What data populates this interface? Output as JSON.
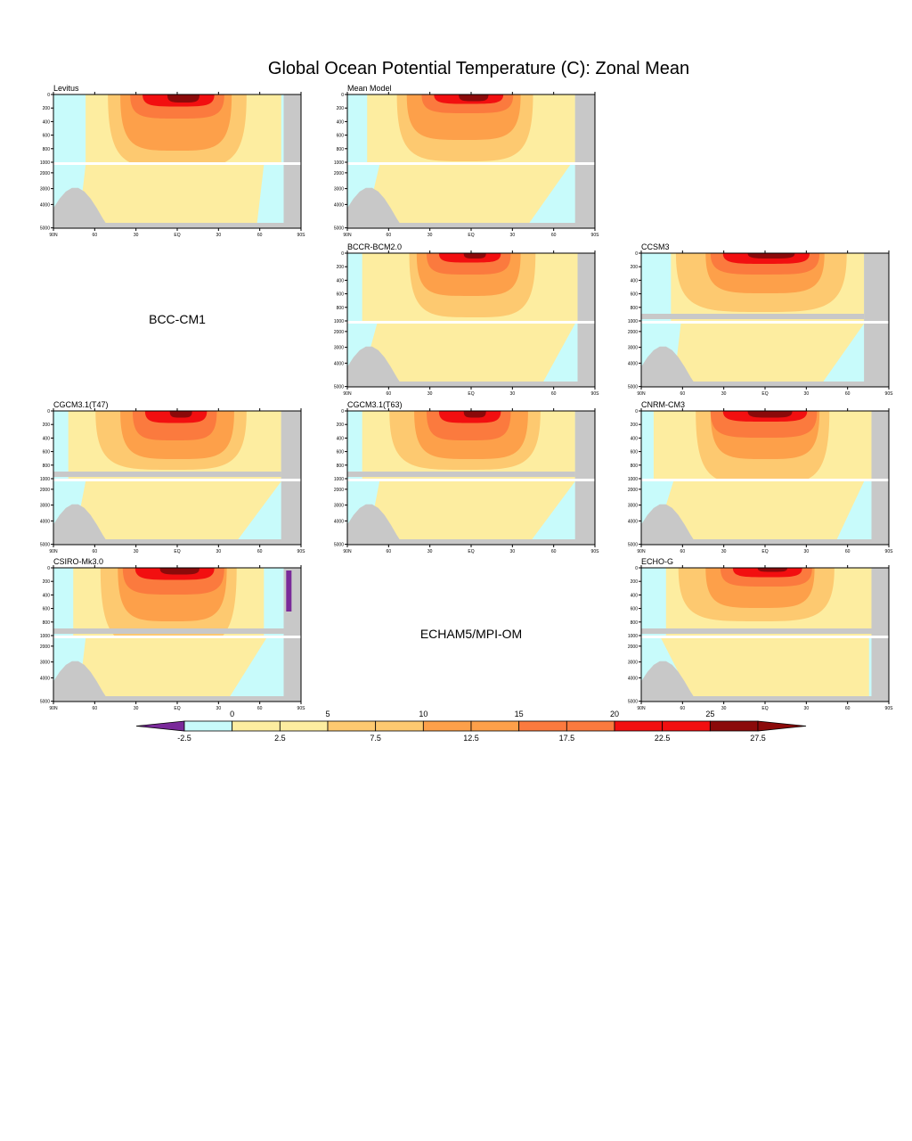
{
  "title": "Global Ocean Potential Temperature (C): Zonal Mean",
  "colors": {
    "land": "#c8c8c8",
    "below_-2.5": "#7a2a9a",
    "-2.5_0": "#c8fbfb",
    "0_5": "#fdeda0",
    "5_10": "#fdc970",
    "10_15": "#fda04a",
    "15_20": "#fb7a3e",
    "20_25": "#f20f10",
    "above_25": "#8b0a0a"
  },
  "chart_data": {
    "type": "contour",
    "x_ticks": [
      "90N",
      "60",
      "30",
      "EQ",
      "30",
      "60",
      "90S"
    ],
    "y_ticks_upper": [
      "0",
      "200",
      "400",
      "600",
      "800",
      "1000"
    ],
    "y_ticks_lower": [
      "2000",
      "3000",
      "4000",
      "5000"
    ],
    "ylim": [
      0,
      5000
    ],
    "y_break": 1000,
    "panels": [
      {
        "name": "Levitus",
        "profile": "levitus"
      },
      {
        "name": "Mean Model",
        "profile": "mean"
      },
      {
        "name": "BCC-CM1",
        "missing": true
      },
      {
        "name": "BCCR-BCM2.0",
        "profile": "bccr"
      },
      {
        "name": "CCSM3",
        "profile": "ccsm3"
      },
      {
        "name": "CGCM3.1(T47)",
        "profile": "cgcm47"
      },
      {
        "name": "CGCM3.1(T63)",
        "profile": "cgcm63"
      },
      {
        "name": "CNRM-CM3",
        "profile": "cnrm"
      },
      {
        "name": "CSIRO-Mk3.0",
        "profile": "csiro"
      },
      {
        "name": "ECHAM5/MPI-OM",
        "missing": true
      },
      {
        "name": "ECHO-G",
        "profile": "echog"
      }
    ],
    "colorbar": {
      "top_labels": [
        "0",
        "5",
        "10",
        "15",
        "20",
        "25"
      ],
      "bottom_labels": [
        "-2.5",
        "2.5",
        "7.5",
        "12.5",
        "17.5",
        "22.5",
        "27.5"
      ],
      "levels": [
        -2.5,
        0,
        2.5,
        5,
        7.5,
        10,
        12.5,
        15,
        17.5,
        20,
        22.5,
        25,
        27.5
      ]
    }
  }
}
